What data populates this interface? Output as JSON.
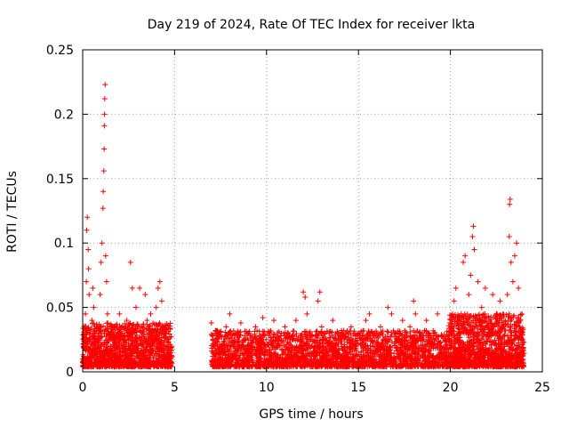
{
  "chart_data": {
    "type": "scatter",
    "title": "Day 219 of 2024, Rate Of TEC Index for receiver lkta",
    "xlabel": "GPS time / hours",
    "ylabel": "ROTI / TECUs",
    "xlim": [
      0,
      25
    ],
    "ylim": [
      0,
      0.25
    ],
    "xticks": [
      0,
      5,
      10,
      15,
      20,
      25
    ],
    "xtick_labels": [
      "0",
      "5",
      "10",
      "15",
      "20",
      "25"
    ],
    "yticks": [
      0,
      0.05,
      0.1,
      0.15,
      0.2,
      0.25
    ],
    "ytick_labels": [
      "0",
      "0.05",
      "0.1",
      "0.15",
      "0.2",
      "0.25"
    ],
    "grid": true,
    "marker": "+",
    "color": "#ff0000",
    "series": [
      {
        "name": "ROTI",
        "points": [
          [
            0.05,
            0.012
          ],
          [
            0.1,
            0.025
          ],
          [
            0.15,
            0.045
          ],
          [
            0.2,
            0.07
          ],
          [
            0.22,
            0.11
          ],
          [
            0.25,
            0.12
          ],
          [
            0.3,
            0.095
          ],
          [
            0.32,
            0.08
          ],
          [
            0.35,
            0.06
          ],
          [
            0.4,
            0.03
          ],
          [
            0.45,
            0.018
          ],
          [
            0.5,
            0.04
          ],
          [
            0.55,
            0.065
          ],
          [
            0.6,
            0.05
          ],
          [
            0.7,
            0.022
          ],
          [
            0.8,
            0.015
          ],
          [
            0.9,
            0.03
          ],
          [
            0.95,
            0.06
          ],
          [
            1.0,
            0.085
          ],
          [
            1.05,
            0.1
          ],
          [
            1.1,
            0.127
          ],
          [
            1.12,
            0.14
          ],
          [
            1.15,
            0.156
          ],
          [
            1.17,
            0.173
          ],
          [
            1.18,
            0.191
          ],
          [
            1.19,
            0.2
          ],
          [
            1.2,
            0.212
          ],
          [
            1.22,
            0.223
          ],
          [
            1.25,
            0.09
          ],
          [
            1.3,
            0.07
          ],
          [
            1.35,
            0.045
          ],
          [
            1.4,
            0.025
          ],
          [
            1.5,
            0.015
          ],
          [
            1.6,
            0.035
          ],
          [
            1.7,
            0.02
          ],
          [
            1.8,
            0.012
          ],
          [
            1.9,
            0.028
          ],
          [
            2.0,
            0.045
          ],
          [
            2.1,
            0.03
          ],
          [
            2.2,
            0.018
          ],
          [
            2.3,
            0.025
          ],
          [
            2.4,
            0.04
          ],
          [
            2.5,
            0.02
          ],
          [
            2.6,
            0.085
          ],
          [
            2.7,
            0.065
          ],
          [
            2.8,
            0.03
          ],
          [
            2.9,
            0.05
          ],
          [
            3.0,
            0.02
          ],
          [
            3.1,
            0.065
          ],
          [
            3.2,
            0.035
          ],
          [
            3.3,
            0.015
          ],
          [
            3.4,
            0.06
          ],
          [
            3.5,
            0.04
          ],
          [
            3.6,
            0.025
          ],
          [
            3.7,
            0.045
          ],
          [
            3.8,
            0.02
          ],
          [
            3.9,
            0.03
          ],
          [
            4.0,
            0.05
          ],
          [
            4.1,
            0.065
          ],
          [
            4.2,
            0.07
          ],
          [
            4.3,
            0.055
          ],
          [
            4.4,
            0.035
          ],
          [
            4.5,
            0.02
          ],
          [
            4.6,
            0.015
          ],
          [
            4.7,
            0.01
          ],
          [
            4.8,
            0.008
          ],
          [
            7.0,
            0.038
          ],
          [
            7.1,
            0.02
          ],
          [
            7.2,
            0.012
          ],
          [
            7.4,
            0.028
          ],
          [
            7.6,
            0.015
          ],
          [
            7.8,
            0.035
          ],
          [
            8.0,
            0.045
          ],
          [
            8.2,
            0.02
          ],
          [
            8.4,
            0.03
          ],
          [
            8.6,
            0.038
          ],
          [
            8.8,
            0.015
          ],
          [
            9.0,
            0.03
          ],
          [
            9.2,
            0.022
          ],
          [
            9.4,
            0.035
          ],
          [
            9.6,
            0.018
          ],
          [
            9.8,
            0.042
          ],
          [
            10.0,
            0.025
          ],
          [
            10.2,
            0.015
          ],
          [
            10.4,
            0.04
          ],
          [
            10.6,
            0.02
          ],
          [
            10.8,
            0.03
          ],
          [
            11.0,
            0.035
          ],
          [
            11.2,
            0.018
          ],
          [
            11.4,
            0.028
          ],
          [
            11.6,
            0.04
          ],
          [
            11.8,
            0.02
          ],
          [
            12.0,
            0.062
          ],
          [
            12.1,
            0.058
          ],
          [
            12.2,
            0.045
          ],
          [
            12.4,
            0.025
          ],
          [
            12.6,
            0.015
          ],
          [
            12.8,
            0.055
          ],
          [
            12.9,
            0.062
          ],
          [
            13.0,
            0.035
          ],
          [
            13.2,
            0.02
          ],
          [
            13.4,
            0.03
          ],
          [
            13.6,
            0.04
          ],
          [
            13.8,
            0.018
          ],
          [
            14.0,
            0.028
          ],
          [
            14.2,
            0.032
          ],
          [
            14.4,
            0.015
          ],
          [
            14.6,
            0.035
          ],
          [
            14.8,
            0.022
          ],
          [
            15.0,
            0.03
          ],
          [
            15.2,
            0.025
          ],
          [
            15.4,
            0.04
          ],
          [
            15.6,
            0.045
          ],
          [
            15.8,
            0.02
          ],
          [
            16.0,
            0.03
          ],
          [
            16.2,
            0.035
          ],
          [
            16.4,
            0.02
          ],
          [
            16.6,
            0.05
          ],
          [
            16.8,
            0.045
          ],
          [
            17.0,
            0.03
          ],
          [
            17.2,
            0.025
          ],
          [
            17.4,
            0.04
          ],
          [
            17.6,
            0.02
          ],
          [
            17.8,
            0.035
          ],
          [
            18.0,
            0.055
          ],
          [
            18.1,
            0.045
          ],
          [
            18.3,
            0.03
          ],
          [
            18.5,
            0.02
          ],
          [
            18.7,
            0.04
          ],
          [
            18.9,
            0.025
          ],
          [
            19.1,
            0.03
          ],
          [
            19.3,
            0.045
          ],
          [
            19.5,
            0.02
          ],
          [
            19.7,
            0.015
          ],
          [
            19.9,
            0.025
          ],
          [
            20.1,
            0.03
          ],
          [
            20.2,
            0.055
          ],
          [
            20.3,
            0.065
          ],
          [
            20.5,
            0.04
          ],
          [
            20.7,
            0.085
          ],
          [
            20.8,
            0.09
          ],
          [
            21.0,
            0.06
          ],
          [
            21.1,
            0.075
          ],
          [
            21.2,
            0.105
          ],
          [
            21.25,
            0.113
          ],
          [
            21.3,
            0.095
          ],
          [
            21.5,
            0.07
          ],
          [
            21.7,
            0.05
          ],
          [
            21.9,
            0.065
          ],
          [
            22.1,
            0.04
          ],
          [
            22.3,
            0.06
          ],
          [
            22.5,
            0.045
          ],
          [
            22.7,
            0.055
          ],
          [
            22.9,
            0.035
          ],
          [
            23.1,
            0.06
          ],
          [
            23.2,
            0.105
          ],
          [
            23.22,
            0.13
          ],
          [
            23.25,
            0.134
          ],
          [
            23.3,
            0.085
          ],
          [
            23.4,
            0.07
          ],
          [
            23.5,
            0.09
          ],
          [
            23.6,
            0.1
          ],
          [
            23.7,
            0.065
          ],
          [
            23.8,
            0.04
          ],
          [
            23.9,
            0.025
          ]
        ],
        "density": {
          "note": "dense band of points not individually labelled; values in data units (hours, TECUs)",
          "segments": [
            {
              "t_start": 0.0,
              "t_end": 4.85,
              "low": 0.004,
              "high": 0.038,
              "count": 1400
            },
            {
              "t_start": 7.0,
              "t_end": 19.9,
              "low": 0.004,
              "high": 0.032,
              "count": 2600
            },
            {
              "t_start": 19.9,
              "t_end": 24.0,
              "low": 0.004,
              "high": 0.045,
              "count": 1300
            }
          ]
        }
      }
    ]
  }
}
